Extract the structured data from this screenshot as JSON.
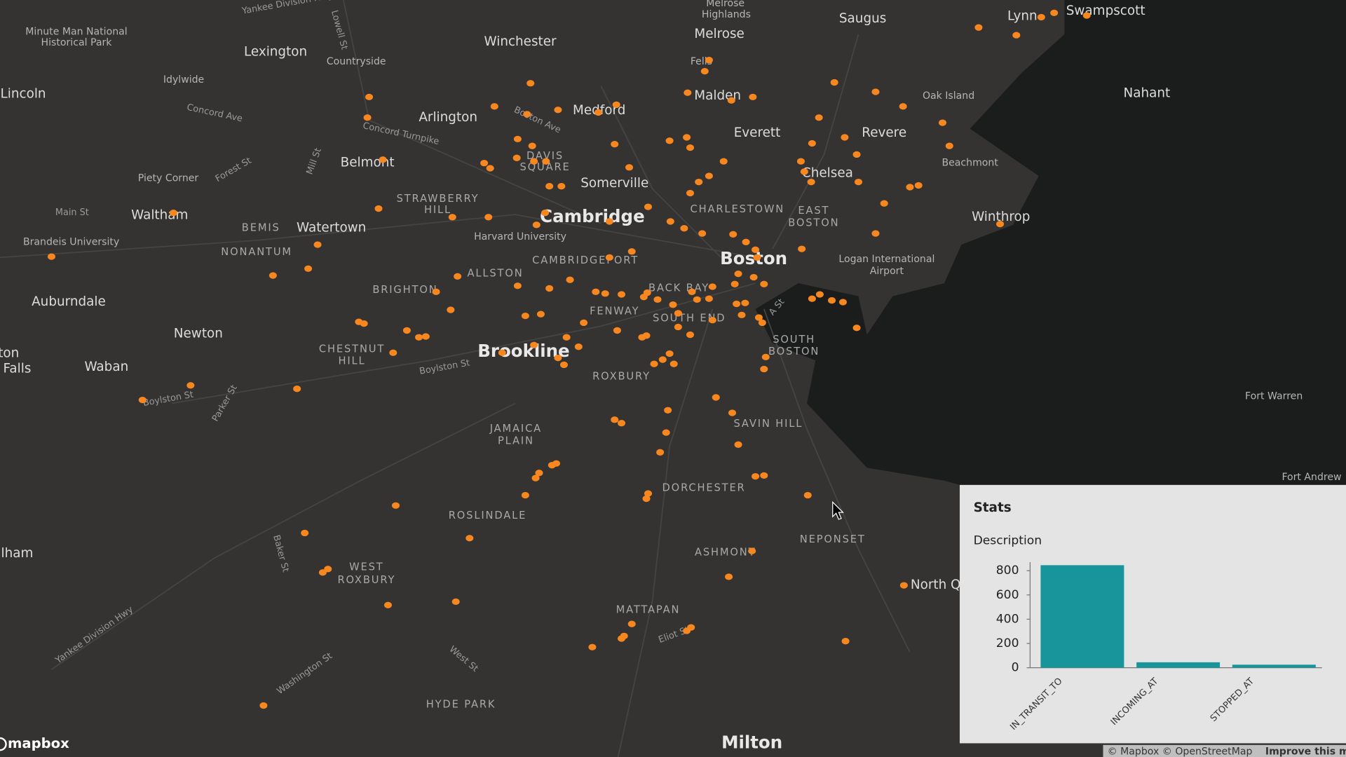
{
  "map": {
    "labels": [
      "Yankee Division Hwy",
      "Minute Man National",
      "Historical Park",
      "Lexington",
      "Lowell St",
      "Countryside",
      "Idylwide",
      "Winchester",
      "Melrose",
      "Highlands",
      "Melrose",
      "Saugus",
      "Lynn",
      "Swampscott",
      "Lincoln",
      "Concord Ave",
      "Arlington",
      "Medford",
      "Fells",
      "Malden",
      "Nahant",
      "Oak Island",
      "Everett",
      "Revere",
      "Concord Turnpike",
      "Boston Ave",
      "Belmont",
      "DAVIS",
      "SQUARE",
      "Somerville",
      "Chelsea",
      "Beachmont",
      "Piety Corner",
      "Forest St",
      "Mill St",
      "STRAWBERRY",
      "HILL",
      "Cambridge",
      "CHARLESTOWN",
      "EAST",
      "BOSTON",
      "Winthrop",
      "Main St",
      "Waltham",
      "BEMIS",
      "Watertown",
      "Harvard University",
      "Brandeis University",
      "NONANTUM",
      "Boston",
      "Logan International",
      "Airport",
      "CAMBRIDGEPORT",
      "ALLSTON",
      "BRIGHTON",
      "BACK BAY",
      "Auburndale",
      "FENWAY",
      "SOUTH END",
      "A St",
      "Newton",
      "SOUTH",
      "BOSTON",
      "CHESTNUT",
      "HILL",
      "Brookline",
      "Boylston St",
      "ton",
      "Falls",
      "Waban",
      "ROXBURY",
      "Fort Warren",
      "Boylston St",
      "Parker St",
      "SAVIN HILL",
      "JAMAICA",
      "PLAIN",
      "Fort Andrew",
      "DORCHESTER",
      "ROSLINDALE",
      "NEPONSET",
      "ASHMONT",
      "Baker St",
      "WEST",
      "ROXBURY",
      "lham",
      "North Q",
      "MATTAPAN",
      "Eliot St",
      "Yankee Division Hwy",
      "West St",
      "Washington St",
      "HYDE PARK",
      "Milton"
    ],
    "logo": "mapbox",
    "attribution": "© Mapbox © OpenStreetMap",
    "improve": "Improve this m"
  },
  "panel": {
    "title": "Stats",
    "description": "Description"
  },
  "chart_data": {
    "type": "bar",
    "categories": [
      "IN_TRANSIT_TO",
      "INCOMING_AT",
      "STOPPED_AT"
    ],
    "values": [
      845,
      45,
      25
    ],
    "color": "#17959a",
    "ylim": [
      0,
      870
    ],
    "yticks": [
      0,
      200,
      400,
      600,
      800
    ]
  }
}
